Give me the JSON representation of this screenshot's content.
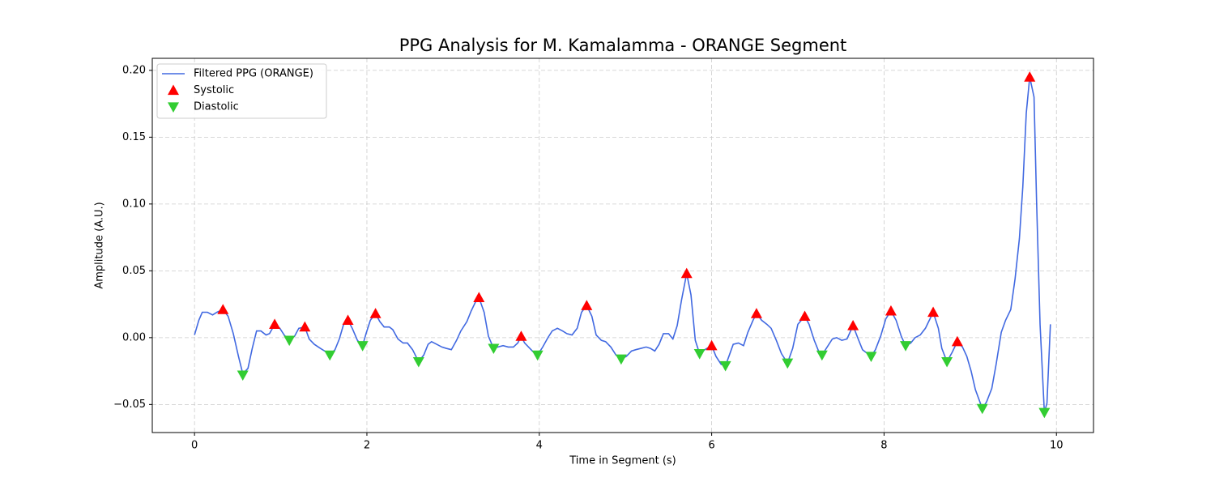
{
  "chart_data": {
    "type": "line",
    "title": "PPG Analysis for M. Kamalamma - ORANGE Segment",
    "xlabel": "Time in Segment (s)",
    "ylabel": "Amplitude (A.U.)",
    "xlim": [
      -0.49,
      10.43
    ],
    "ylim": [
      -0.071,
      0.209
    ],
    "xticks": [
      0,
      2,
      4,
      6,
      8,
      10
    ],
    "yticks": [
      {
        "value": -0.05,
        "label": "−0.05"
      },
      {
        "value": 0,
        "label": "0.00"
      },
      {
        "value": 0.05,
        "label": "0.05"
      },
      {
        "value": 0.1,
        "label": "0.10"
      },
      {
        "value": 0.15,
        "label": "0.15"
      },
      {
        "value": 0.2,
        "label": "0.20"
      }
    ],
    "grid": true,
    "legend": "upper left",
    "series": [
      {
        "name": "Filtered PPG (ORANGE)",
        "type": "line",
        "color": "#4169e1",
        "x": [
          0,
          0.05,
          0.09,
          0.15,
          0.21,
          0.26,
          0.33,
          0.39,
          0.45,
          0.51,
          0.56,
          0.62,
          0.67,
          0.72,
          0.77,
          0.83,
          0.87,
          0.93,
          0.99,
          1.04,
          1.1,
          1.16,
          1.21,
          1.28,
          1.33,
          1.39,
          1.46,
          1.51,
          1.57,
          1.63,
          1.68,
          1.73,
          1.78,
          1.83,
          1.89,
          1.95,
          1.99,
          2.04,
          2.1,
          2.15,
          2.2,
          2.26,
          2.3,
          2.36,
          2.42,
          2.47,
          2.53,
          2.6,
          2.66,
          2.71,
          2.75,
          2.81,
          2.87,
          2.92,
          2.98,
          3.04,
          3.09,
          3.16,
          3.21,
          3.27,
          3.3,
          3.36,
          3.41,
          3.47,
          3.52,
          3.58,
          3.64,
          3.7,
          3.75,
          3.79,
          3.83,
          3.89,
          3.95,
          3.98,
          4.04,
          4.1,
          4.15,
          4.21,
          4.27,
          4.32,
          4.38,
          4.44,
          4.49,
          4.55,
          4.61,
          4.66,
          4.72,
          4.77,
          4.83,
          4.89,
          4.95,
          5.01,
          5.07,
          5.12,
          5.18,
          5.24,
          5.29,
          5.34,
          5.39,
          5.44,
          5.5,
          5.55,
          5.6,
          5.65,
          5.71,
          5.76,
          5.81,
          5.86,
          5.92,
          6,
          6.05,
          6.11,
          6.16,
          6.2,
          6.25,
          6.31,
          6.37,
          6.42,
          6.48,
          6.52,
          6.58,
          6.64,
          6.69,
          6.75,
          6.81,
          6.88,
          6.94,
          7,
          7.08,
          7.13,
          7.19,
          7.24,
          7.28,
          7.34,
          7.4,
          7.45,
          7.51,
          7.57,
          7.64,
          7.7,
          7.75,
          7.85,
          7.9,
          7.96,
          8.02,
          8.08,
          8.14,
          8.2,
          8.25,
          8.31,
          8.36,
          8.42,
          8.48,
          8.57,
          8.63,
          8.67,
          8.73,
          8.79,
          8.85,
          8.91,
          8.96,
          9.01,
          9.06,
          9.14,
          9.19,
          9.25,
          9.3,
          9.36,
          9.41,
          9.47,
          9.52,
          9.57,
          9.61,
          9.65,
          9.69,
          9.74,
          9.77,
          9.81,
          9.86,
          9.89,
          9.93
        ],
        "values": [
          0.002,
          0.013,
          0.019,
          0.019,
          0.017,
          0.019,
          0.021,
          0.016,
          0.003,
          -0.014,
          -0.027,
          -0.023,
          -0.008,
          0.005,
          0.005,
          0.002,
          0.003,
          0.01,
          0.007,
          0.002,
          -0.002,
          0.001,
          0.007,
          0.008,
          -0.001,
          -0.005,
          -0.008,
          -0.01,
          -0.013,
          -0.009,
          -0.001,
          0.01,
          0.013,
          0.007,
          -0.002,
          -0.006,
          0.003,
          0.013,
          0.018,
          0.012,
          0.008,
          0.008,
          0.006,
          -0.001,
          -0.004,
          -0.004,
          -0.009,
          -0.018,
          -0.013,
          -0.005,
          -0.003,
          -0.005,
          -0.007,
          -0.008,
          -0.009,
          -0.002,
          0.005,
          0.012,
          0.02,
          0.028,
          0.03,
          0.019,
          0.001,
          -0.008,
          -0.007,
          -0.006,
          -0.007,
          -0.007,
          -0.004,
          0.001,
          -0.004,
          -0.008,
          -0.012,
          -0.013,
          -0.007,
          0,
          0.005,
          0.007,
          0.005,
          0.003,
          0.002,
          0.007,
          0.019,
          0.024,
          0.016,
          0.002,
          -0.002,
          -0.003,
          -0.007,
          -0.013,
          -0.016,
          -0.014,
          -0.01,
          -0.009,
          -0.008,
          -0.007,
          -0.008,
          -0.01,
          -0.005,
          0.003,
          0.003,
          -0.001,
          0.009,
          0.028,
          0.048,
          0.032,
          -0.002,
          -0.012,
          -0.009,
          -0.006,
          -0.014,
          -0.02,
          -0.021,
          -0.014,
          -0.005,
          -0.004,
          -0.006,
          0.004,
          0.013,
          0.018,
          0.013,
          0.01,
          0.007,
          -0.002,
          -0.012,
          -0.019,
          -0.008,
          0.01,
          0.016,
          0.01,
          -0.002,
          -0.01,
          -0.013,
          -0.007,
          -0.001,
          0,
          -0.002,
          -0.001,
          0.009,
          -0.001,
          -0.009,
          -0.014,
          -0.009,
          0.001,
          0.014,
          0.02,
          0.013,
          0.001,
          -0.006,
          -0.004,
          0,
          0.002,
          0.007,
          0.019,
          0.007,
          -0.008,
          -0.018,
          -0.011,
          -0.003,
          -0.007,
          -0.014,
          -0.025,
          -0.039,
          -0.053,
          -0.048,
          -0.038,
          -0.02,
          0.004,
          0.013,
          0.021,
          0.044,
          0.074,
          0.113,
          0.168,
          0.195,
          0.18,
          0.101,
          0.01,
          -0.056,
          -0.049,
          0.01
        ]
      },
      {
        "name": "Systolic",
        "type": "scatter",
        "marker": "triangle-up",
        "color": "#ff0000",
        "x": [
          0.33,
          0.93,
          1.28,
          1.78,
          2.1,
          3.3,
          3.79,
          4.55,
          5.71,
          6,
          6.52,
          7.08,
          7.64,
          8.08,
          8.57,
          8.85,
          9.69
        ],
        "values": [
          0.021,
          0.01,
          0.008,
          0.013,
          0.018,
          0.03,
          0.001,
          0.024,
          0.048,
          -0.006,
          0.018,
          0.016,
          0.009,
          0.02,
          0.019,
          -0.003,
          0.195
        ]
      },
      {
        "name": "Diastolic",
        "type": "scatter",
        "marker": "triangle-down",
        "color": "#32cd32",
        "x": [
          0.56,
          1.1,
          1.57,
          1.95,
          2.6,
          3.47,
          3.98,
          4.95,
          5.86,
          6.16,
          6.88,
          7.28,
          7.85,
          8.25,
          8.73,
          9.14,
          9.86
        ],
        "values": [
          -0.028,
          -0.002,
          -0.013,
          -0.006,
          -0.018,
          -0.008,
          -0.013,
          -0.016,
          -0.012,
          -0.021,
          -0.019,
          -0.013,
          -0.014,
          -0.006,
          -0.018,
          -0.053,
          -0.056
        ]
      }
    ]
  }
}
